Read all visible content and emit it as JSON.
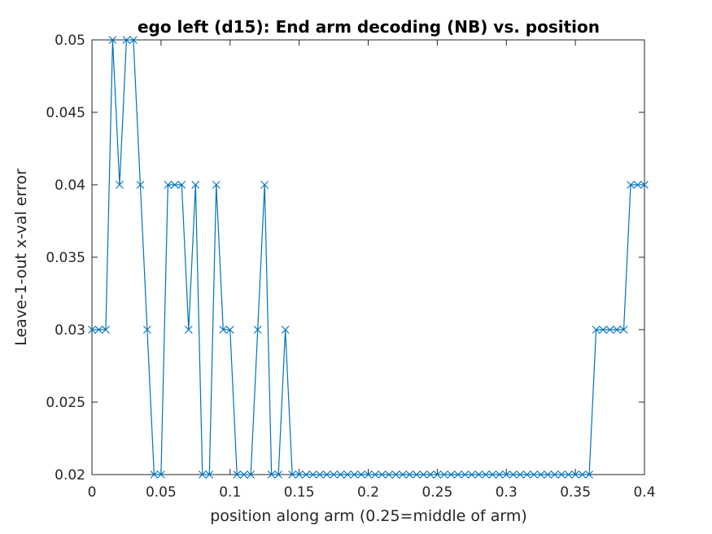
{
  "chart_data": {
    "type": "line",
    "title": "ego left (d15): End arm decoding (NB) vs. position",
    "xlabel": "position along arm (0.25=middle of arm)",
    "ylabel": "Leave-1-out x-val error",
    "xlim": [
      0,
      0.4
    ],
    "ylim": [
      0.02,
      0.05
    ],
    "xticks": [
      0,
      0.05,
      0.1,
      0.15,
      0.2,
      0.25,
      0.3,
      0.35,
      0.4
    ],
    "xtick_labels": [
      "0",
      "0.05",
      "0.1",
      "0.15",
      "0.2",
      "0.25",
      "0.3",
      "0.35",
      "0.4"
    ],
    "yticks": [
      0.02,
      0.025,
      0.03,
      0.035,
      0.04,
      0.045,
      0.05
    ],
    "ytick_labels": [
      "0.02",
      "0.025",
      "0.03",
      "0.035",
      "0.04",
      "0.045",
      "0.05"
    ],
    "grid": false,
    "marker": "x",
    "color": "#0072bd",
    "series": [
      {
        "x": [
          0,
          0.005,
          0.01,
          0.015,
          0.02,
          0.025,
          0.03,
          0.035,
          0.04,
          0.045,
          0.05,
          0.055,
          0.06,
          0.065,
          0.07,
          0.075,
          0.08,
          0.085,
          0.09,
          0.095,
          0.1,
          0.105,
          0.11,
          0.115,
          0.12,
          0.125,
          0.13,
          0.135,
          0.14,
          0.145,
          0.15,
          0.155,
          0.16,
          0.165,
          0.17,
          0.175,
          0.18,
          0.185,
          0.19,
          0.195,
          0.2,
          0.205,
          0.21,
          0.215,
          0.22,
          0.225,
          0.23,
          0.235,
          0.24,
          0.245,
          0.25,
          0.255,
          0.26,
          0.265,
          0.27,
          0.275,
          0.28,
          0.285,
          0.29,
          0.295,
          0.3,
          0.305,
          0.31,
          0.315,
          0.32,
          0.325,
          0.33,
          0.335,
          0.34,
          0.345,
          0.35,
          0.355,
          0.36,
          0.365,
          0.37,
          0.375,
          0.38,
          0.385,
          0.39,
          0.395,
          0.4
        ],
        "y": [
          0.03,
          0.03,
          0.03,
          0.05,
          0.04,
          0.05,
          0.05,
          0.04,
          0.03,
          0.02,
          0.02,
          0.04,
          0.04,
          0.04,
          0.03,
          0.04,
          0.02,
          0.02,
          0.04,
          0.03,
          0.03,
          0.02,
          0.02,
          0.02,
          0.03,
          0.04,
          0.02,
          0.02,
          0.03,
          0.02,
          0.02,
          0.02,
          0.02,
          0.02,
          0.02,
          0.02,
          0.02,
          0.02,
          0.02,
          0.02,
          0.02,
          0.02,
          0.02,
          0.02,
          0.02,
          0.02,
          0.02,
          0.02,
          0.02,
          0.02,
          0.02,
          0.02,
          0.02,
          0.02,
          0.02,
          0.02,
          0.02,
          0.02,
          0.02,
          0.02,
          0.02,
          0.02,
          0.02,
          0.02,
          0.02,
          0.02,
          0.02,
          0.02,
          0.02,
          0.02,
          0.02,
          0.02,
          0.02,
          0.03,
          0.03,
          0.03,
          0.03,
          0.03,
          0.04,
          0.04,
          0.04
        ]
      }
    ]
  }
}
